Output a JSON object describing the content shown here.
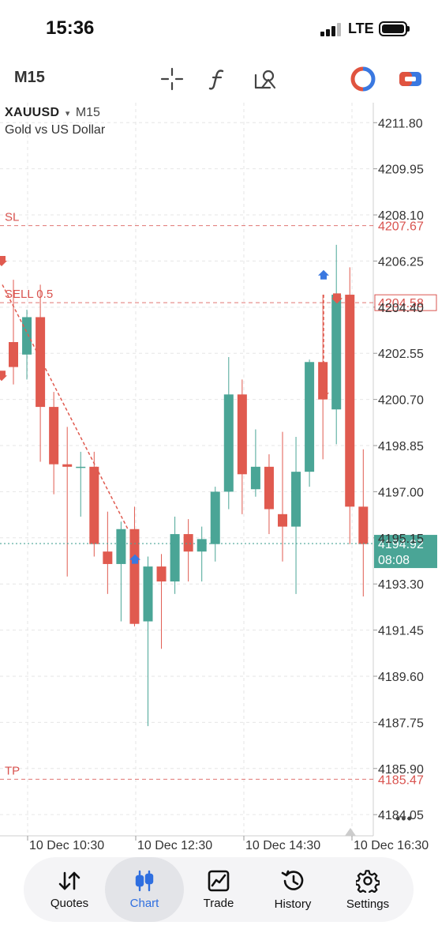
{
  "status_bar": {
    "time": "15:36",
    "network": "LTE"
  },
  "toolbar": {
    "timeframe": "M15",
    "icons": [
      "crosshair-icon",
      "indicator-f-icon",
      "objects-icon",
      "one-click-trading-icon",
      "trade-panel-icon"
    ]
  },
  "chart": {
    "symbol": "XAUUSD",
    "dropdown_glyph": "▾",
    "timeframe": "M15",
    "description": "Gold vs US Dollar",
    "more_glyph": "•••",
    "colors": {
      "bull": "#4aa596",
      "bear": "#e05a4f",
      "grid": "#e6e6e6",
      "level": "#d9534f",
      "bid": "#4aa596"
    },
    "price_scale": [
      "4211.80",
      "4209.95",
      "4208.10",
      "4206.25",
      "4204.40",
      "4202.55",
      "4200.70",
      "4198.85",
      "4197.00",
      "4195.15",
      "4193.30",
      "4191.45",
      "4189.60",
      "4187.75",
      "4185.90",
      "4184.05"
    ],
    "time_scale": [
      "10 Dec 10:30",
      "10 Dec 12:30",
      "10 Dec 14:30",
      "10 Dec 16:30"
    ],
    "levels": {
      "sl": {
        "label": "SL",
        "price": "4207.67"
      },
      "order": {
        "label": "SELL 0.5",
        "price": "4204.58"
      },
      "tp": {
        "label": "TP",
        "price": "4185.47"
      }
    },
    "bid": {
      "price": "4194.92",
      "countdown": "08:08"
    }
  },
  "chart_data": {
    "type": "candlestick",
    "y_range": [
      4183.2,
      4212.6
    ],
    "candles": [
      {
        "o": 4203.0,
        "h": 4205.5,
        "l": 4201.3,
        "c": 4202.0
      },
      {
        "o": 4202.5,
        "h": 4204.3,
        "l": 4201.5,
        "c": 4204.0
      },
      {
        "o": 4204.0,
        "h": 4205.3,
        "l": 4198.2,
        "c": 4200.4
      },
      {
        "o": 4200.4,
        "h": 4201.0,
        "l": 4196.9,
        "c": 4198.1
      },
      {
        "o": 4198.1,
        "h": 4199.6,
        "l": 4193.6,
        "c": 4198.0
      },
      {
        "o": 4198.0,
        "h": 4198.6,
        "l": 4196.0,
        "c": 4198.0
      },
      {
        "o": 4198.0,
        "h": 4198.6,
        "l": 4194.4,
        "c": 4194.9
      },
      {
        "o": 4194.6,
        "h": 4196.2,
        "l": 4192.9,
        "c": 4194.1
      },
      {
        "o": 4194.1,
        "h": 4195.8,
        "l": 4191.8,
        "c": 4195.5
      },
      {
        "o": 4195.5,
        "h": 4196.4,
        "l": 4191.6,
        "c": 4191.7
      },
      {
        "o": 4191.8,
        "h": 4194.4,
        "l": 4187.6,
        "c": 4194.0
      },
      {
        "o": 4194.0,
        "h": 4194.5,
        "l": 4190.7,
        "c": 4193.4
      },
      {
        "o": 4193.4,
        "h": 4196.0,
        "l": 4192.9,
        "c": 4195.3
      },
      {
        "o": 4195.3,
        "h": 4195.9,
        "l": 4193.4,
        "c": 4194.6
      },
      {
        "o": 4194.6,
        "h": 4195.6,
        "l": 4193.4,
        "c": 4195.1
      },
      {
        "o": 4194.9,
        "h": 4197.2,
        "l": 4194.2,
        "c": 4197.0
      },
      {
        "o": 4197.0,
        "h": 4202.4,
        "l": 4196.3,
        "c": 4200.9
      },
      {
        "o": 4200.9,
        "h": 4201.5,
        "l": 4196.1,
        "c": 4197.7
      },
      {
        "o": 4197.1,
        "h": 4199.5,
        "l": 4196.8,
        "c": 4198.0
      },
      {
        "o": 4198.0,
        "h": 4198.5,
        "l": 4195.3,
        "c": 4196.3
      },
      {
        "o": 4196.1,
        "h": 4199.4,
        "l": 4194.2,
        "c": 4195.6
      },
      {
        "o": 4195.6,
        "h": 4199.2,
        "l": 4192.9,
        "c": 4197.8
      },
      {
        "o": 4197.8,
        "h": 4202.3,
        "l": 4197.2,
        "c": 4202.2
      },
      {
        "o": 4202.2,
        "h": 4204.9,
        "l": 4198.3,
        "c": 4200.7
      },
      {
        "o": 4200.3,
        "h": 4206.9,
        "l": 4198.9,
        "c": 4204.9
      },
      {
        "o": 4204.9,
        "h": 4206.0,
        "l": 4194.9,
        "c": 4196.4
      },
      {
        "o": 4196.4,
        "h": 4198.7,
        "l": 4192.8,
        "c": 4194.9
      }
    ]
  },
  "bottom_nav": {
    "items": [
      {
        "label": "Quotes",
        "icon": "quotes-arrows-icon"
      },
      {
        "label": "Chart",
        "icon": "chart-candles-icon"
      },
      {
        "label": "Trade",
        "icon": "trade-graph-icon"
      },
      {
        "label": "History",
        "icon": "history-clock-icon"
      },
      {
        "label": "Settings",
        "icon": "settings-gear-icon"
      }
    ],
    "active": "Chart"
  }
}
